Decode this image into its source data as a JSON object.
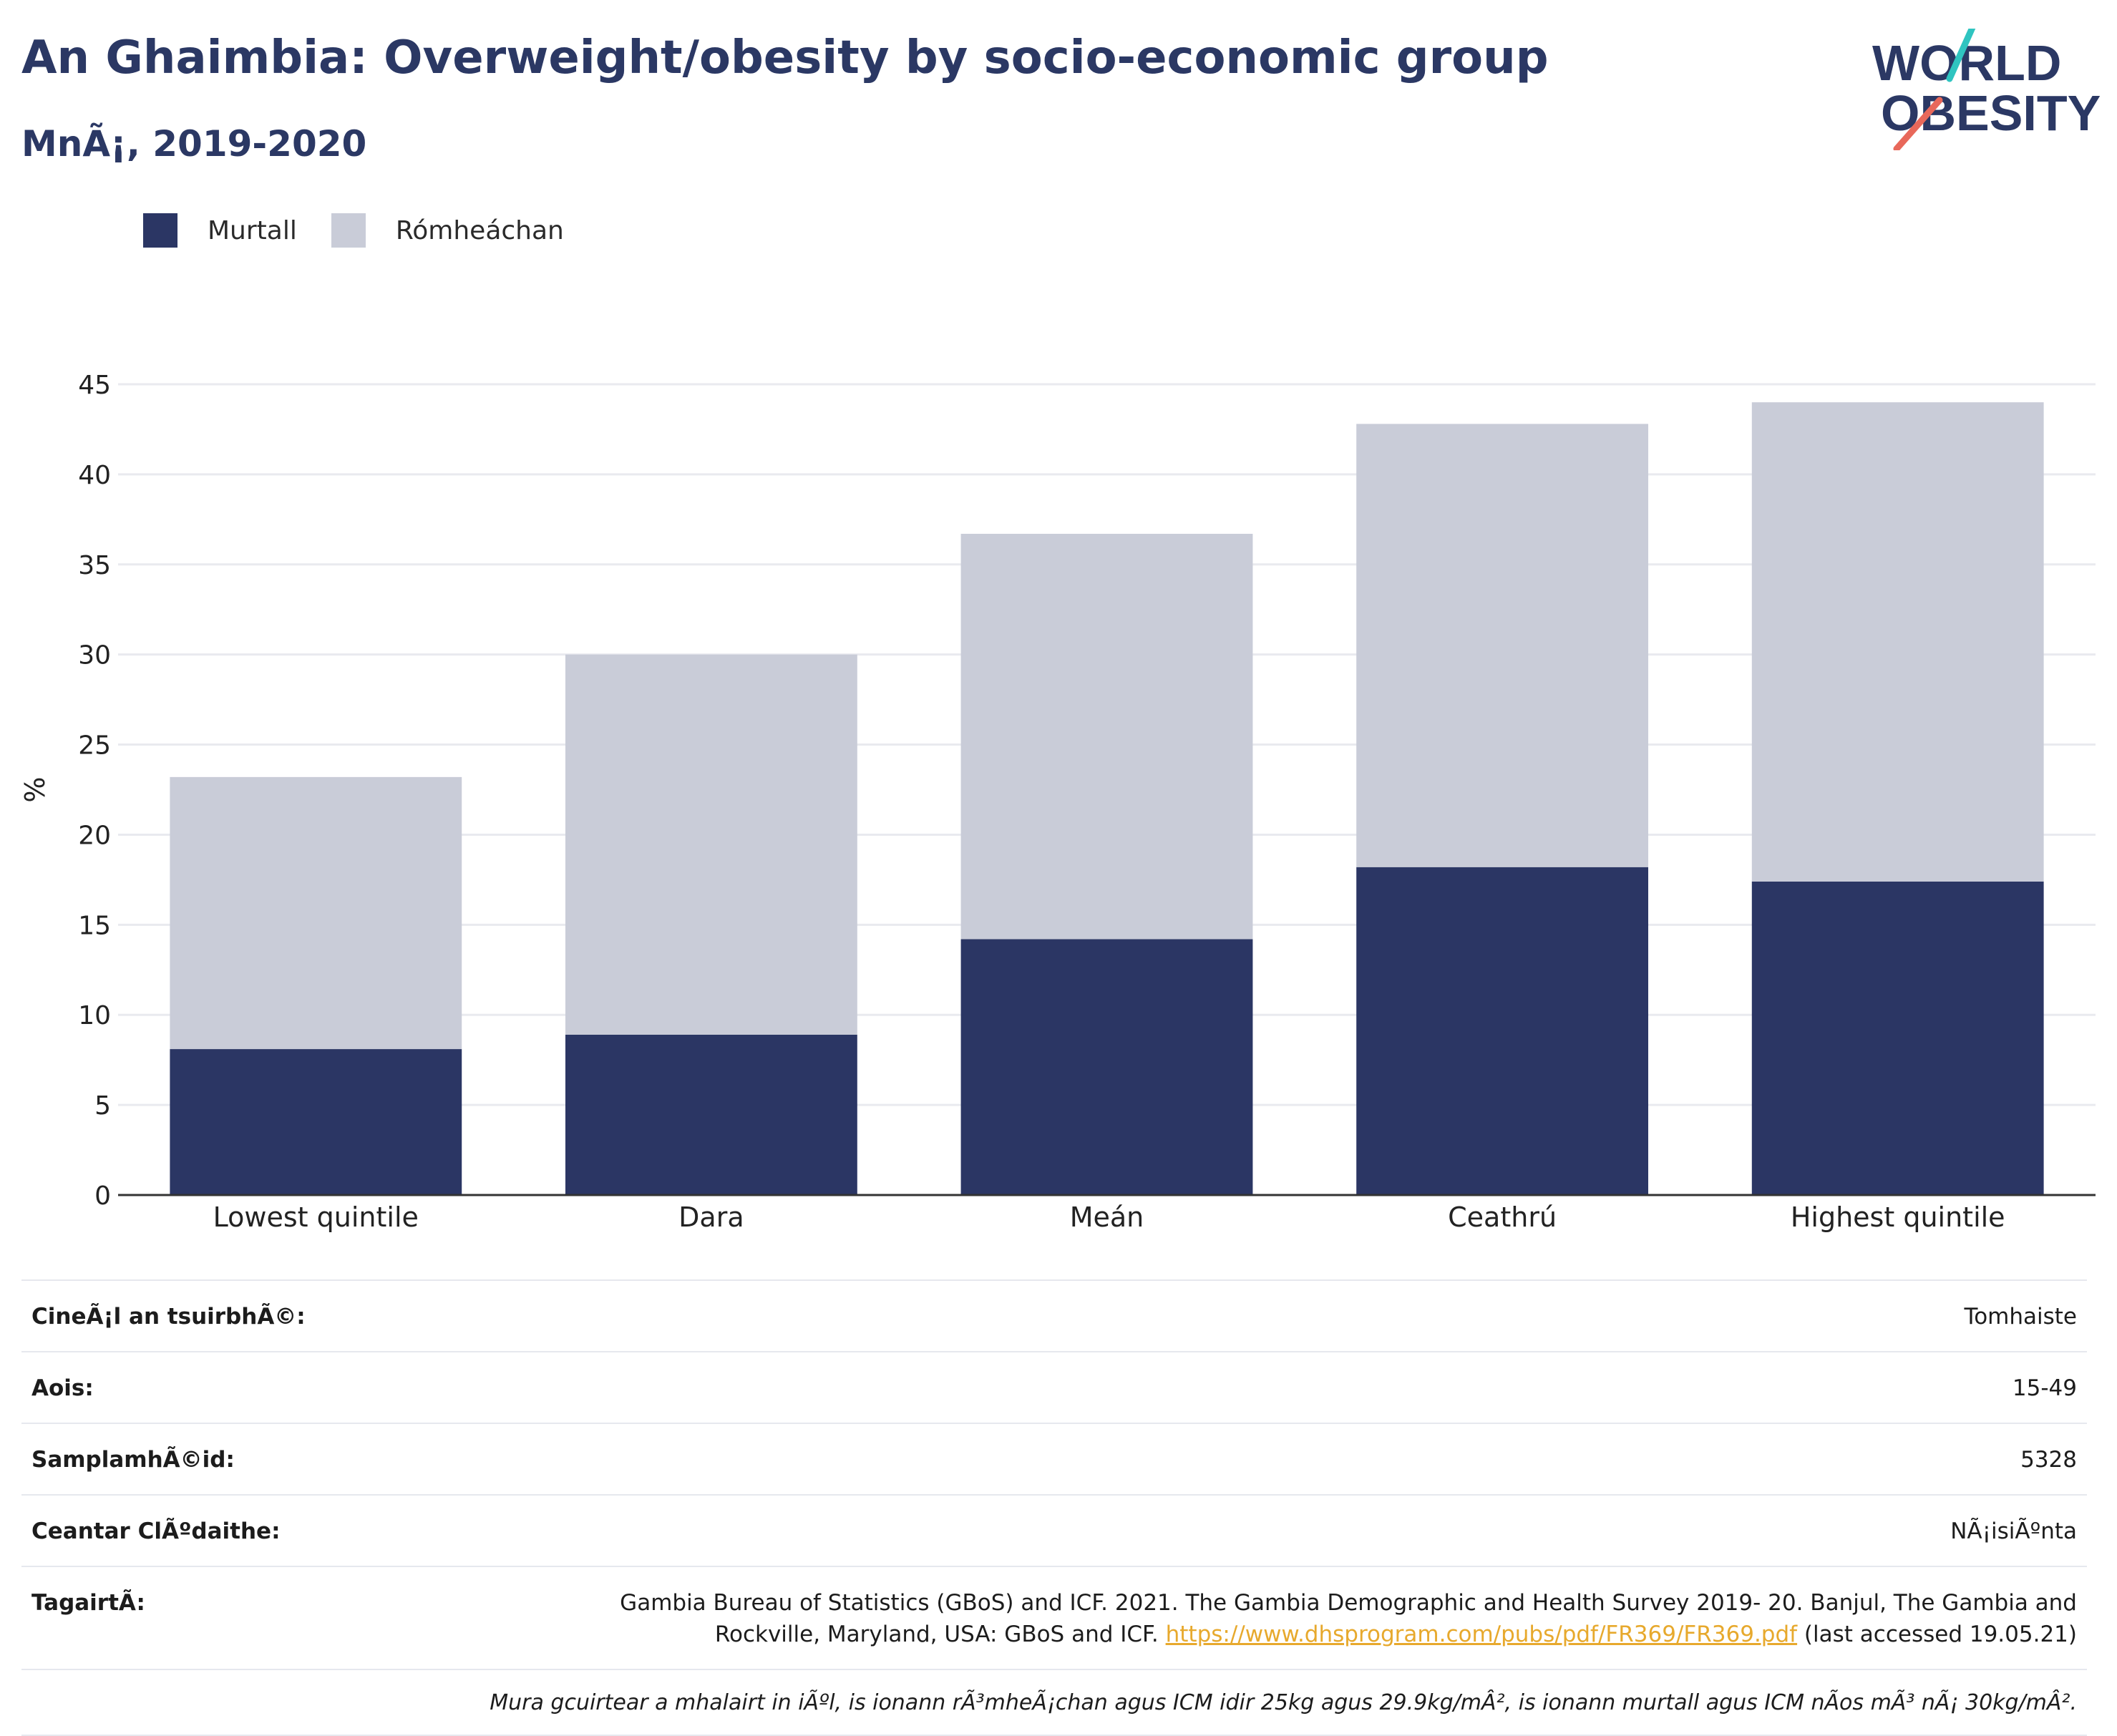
{
  "header": {
    "title": "An Ghaimbia: Overweight/obesity by socio-economic group",
    "subtitle": "MnÃ¡, 2019-2020"
  },
  "logo": {
    "line1": "WORLD",
    "line2": "OBESITY",
    "colors": {
      "text": "#2b3864",
      "slash_top": "#2fc4c0",
      "slash_bottom": "#e8685a"
    }
  },
  "legend": [
    {
      "label": "Murtall",
      "color": "#2b3664"
    },
    {
      "label": "Rómheáchan",
      "color": "#c9ccd8"
    }
  ],
  "chart_data": {
    "type": "bar",
    "stacked": true,
    "categories": [
      "Lowest quintile",
      "Dara",
      "Meán",
      "Ceathrú",
      "Highest quintile"
    ],
    "series": [
      {
        "name": "Murtall",
        "values": [
          8.1,
          8.9,
          14.2,
          18.2,
          17.4
        ],
        "color": "#2b3664"
      },
      {
        "name": "Rómheáchan",
        "values": [
          15.1,
          21.1,
          22.5,
          24.6,
          26.6
        ],
        "color": "#c9ccd8"
      }
    ],
    "ylabel": "%",
    "ylim": [
      0,
      45
    ],
    "yticks": [
      0,
      5,
      10,
      15,
      20,
      25,
      30,
      35,
      40,
      45
    ],
    "grid": true,
    "legend_position": "top-left"
  },
  "info": {
    "rows": [
      {
        "key": "CineÃ¡l an tsuirbhÃ©:",
        "value": "Tomhaiste"
      },
      {
        "key": "Aois:",
        "value": "15-49"
      },
      {
        "key": "SamplamhÃ©id:",
        "value": "5328"
      },
      {
        "key": "Ceantar ClÃºdaithe:",
        "value": "NÃ¡isiÃºnta"
      }
    ],
    "reference": {
      "key": "TagairtÃ:",
      "text_before": "Gambia Bureau of Statistics (GBoS) and ICF. 2021. The Gambia Demographic and Health Survey 2019- 20. Banjul, The Gambia and Rockville, Maryland, USA: GBoS and ICF. ",
      "link": "https://www.dhsprogram.com/pubs/pdf/FR369/FR369.pdf",
      "text_after": " (last accessed 19.05.21)"
    },
    "note": "Mura gcuirtear a mhalairt in iÃºl, is ionann rÃ³mheÃ¡chan agus ICM idir 25kg agus 29.9kg/mÂ², is ionann murtall agus ICM nÃos mÃ³ nÃ¡ 30kg/mÂ²."
  }
}
